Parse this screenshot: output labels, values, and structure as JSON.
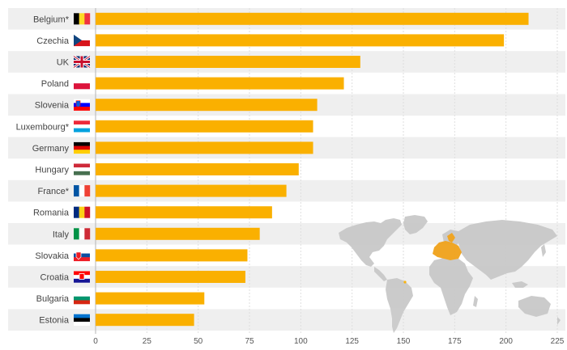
{
  "chart_data": {
    "type": "bar",
    "orientation": "horizontal",
    "title": "",
    "xlabel": "",
    "ylabel": "",
    "categories": [
      "Belgium*",
      "Czechia",
      "UK",
      "Poland",
      "Slovenia",
      "Luxembourg*",
      "Germany",
      "Hungary",
      "France*",
      "Romania",
      "Italy",
      "Slovakia",
      "Croatia",
      "Bulgaria",
      "Estonia"
    ],
    "flags": [
      "belgium-flag-icon",
      "czechia-flag-icon",
      "uk-flag-icon",
      "poland-flag-icon",
      "slovenia-flag-icon",
      "luxembourg-flag-icon",
      "germany-flag-icon",
      "hungary-flag-icon",
      "france-flag-icon",
      "romania-flag-icon",
      "italy-flag-icon",
      "slovakia-flag-icon",
      "croatia-flag-icon",
      "bulgaria-flag-icon",
      "estonia-flag-icon"
    ],
    "values": [
      211,
      199,
      129,
      121,
      108,
      106,
      106,
      99,
      93,
      86,
      80,
      74,
      73,
      53,
      48
    ],
    "xlim": [
      0,
      225
    ],
    "xticks": [
      0,
      25,
      50,
      75,
      100,
      125,
      150,
      175,
      200,
      225
    ],
    "bar_color": "#fab000",
    "row_band_color": "#efefef",
    "grid": true,
    "decoration": "world-map-icon with EU countries highlighted in orange"
  }
}
